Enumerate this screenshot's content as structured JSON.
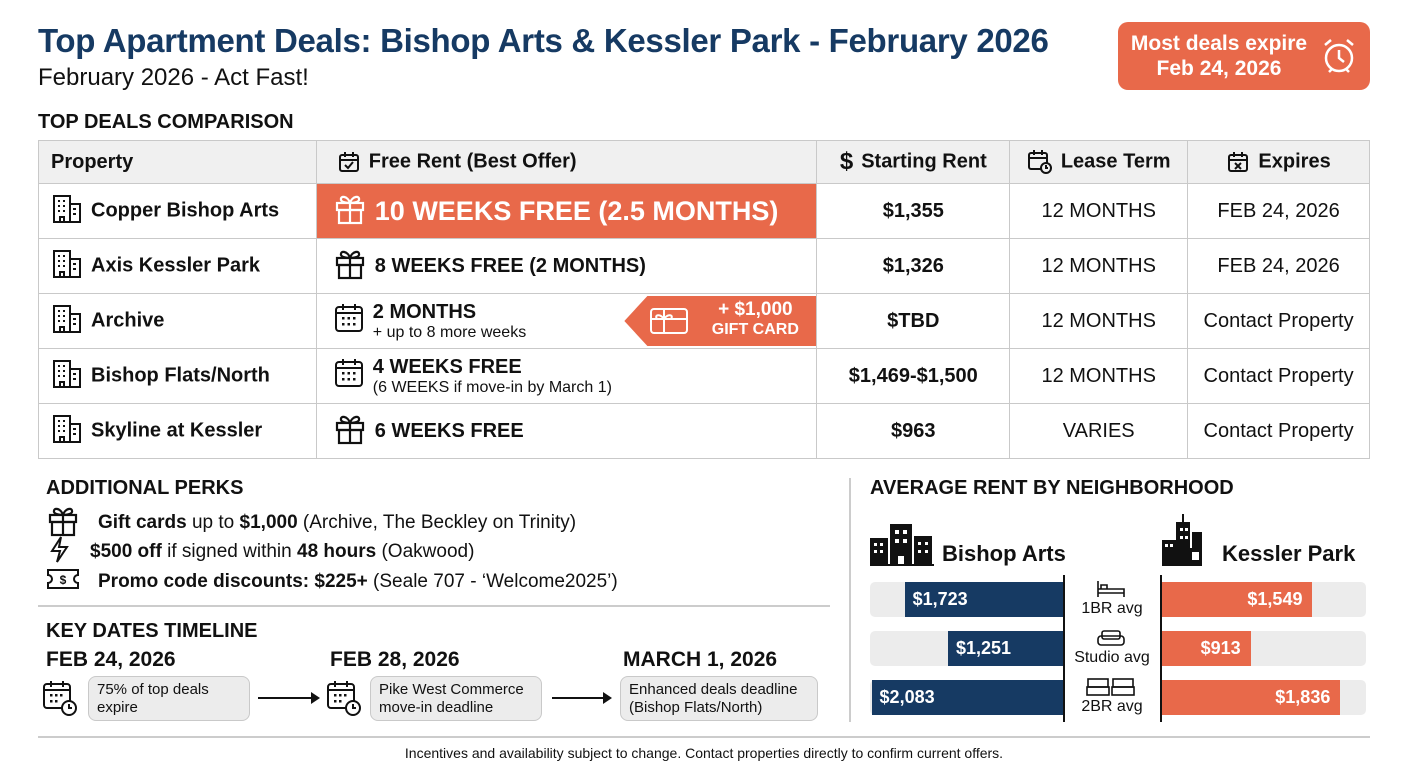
{
  "header": {
    "title": "Top Apartment Deals: Bishop Arts & Kessler Park - February 2026",
    "subtitle": "February 2026 - Act Fast!",
    "badge_line1": "Most deals expire",
    "badge_line2": "Feb 24, 2026",
    "badge_icon": "alarm-clock-icon"
  },
  "colors": {
    "navy": "#163a63",
    "orange": "#e8694a"
  },
  "comparison": {
    "heading": "TOP DEALS COMPARISON",
    "columns": [
      "Property",
      "Free Rent (Best Offer)",
      "Starting Rent",
      "Lease Term",
      "Expires"
    ],
    "rows": [
      {
        "property": "Copper Bishop Arts",
        "offer": "10 WEEKS FREE (2.5 MONTHS)",
        "offer_note": "",
        "offer_icon": "gift-icon",
        "highlight": true,
        "rent": "$1,355",
        "term": "12 MONTHS",
        "expires": "FEB 24, 2026"
      },
      {
        "property": "Axis Kessler Park",
        "offer": "8 WEEKS FREE (2 MONTHS)",
        "offer_note": "",
        "offer_icon": "gift-icon",
        "rent": "$1,326",
        "term": "12 MONTHS",
        "expires": "FEB 24, 2026"
      },
      {
        "property": "Archive",
        "offer": "2 MONTHS",
        "offer_note": "+ up to 8 more weeks",
        "offer_icon": "calendar-icon",
        "tag_line1": "+ $1,000",
        "tag_line2": "GIFT CARD",
        "rent": "$TBD",
        "term": "12 MONTHS",
        "expires": "Contact Property"
      },
      {
        "property": "Bishop Flats/North",
        "offer": "4 WEEKS FREE",
        "offer_note": "(6 WEEKS if move-in by March 1)",
        "offer_icon": "calendar-icon",
        "rent": "$1,469-$1,500",
        "term": "12 MONTHS",
        "expires": "Contact Property"
      },
      {
        "property": "Skyline at Kessler",
        "offer": "6 WEEKS FREE",
        "offer_note": "",
        "offer_icon": "gift-icon",
        "rent": "$963",
        "term": "VARIES",
        "expires": "Contact Property"
      }
    ]
  },
  "perks": {
    "heading": "ADDITIONAL PERKS",
    "items": [
      {
        "icon": "gift-icon",
        "b1": "Gift cards",
        "t1": " up to ",
        "b2": "$1,000",
        "t2": " (Archive, The Beckley on Trinity)"
      },
      {
        "icon": "lightning-icon",
        "b1": "$500 off",
        "t1": " if signed within ",
        "b2": "48 hours",
        "t2": " (Oakwood)"
      },
      {
        "icon": "ticket-icon",
        "b1": "Promo code discounts: $225+",
        "t1": " (Seale 707 - ‘Welcome2025’)",
        "b2": "",
        "t2": ""
      }
    ]
  },
  "timeline": {
    "heading": "KEY DATES TIMELINE",
    "events": [
      {
        "date": "FEB 24, 2026",
        "line1": "75% of top deals",
        "line2": "expire"
      },
      {
        "date": "FEB 28, 2026",
        "line1": "Pike West Commerce",
        "line2": "move-in deadline"
      },
      {
        "date": "MARCH 1, 2026",
        "line1": "Enhanced deals deadline",
        "line2": "(Bishop Flats/North)"
      }
    ]
  },
  "chart_data": {
    "type": "bar",
    "title": "AVERAGE RENT BY NEIGHBORHOOD",
    "categories": [
      "1BR avg",
      "Studio avg",
      "2BR avg"
    ],
    "series": [
      {
        "name": "Bishop Arts",
        "values": [
          1723,
          1251,
          2083
        ],
        "labels": [
          "$1,723",
          "$1,251",
          "$2,083"
        ],
        "color": "#163a63"
      },
      {
        "name": "Kessler Park",
        "values": [
          1549,
          913,
          1836
        ],
        "labels": [
          "$1,549",
          "$913",
          "$1,836"
        ],
        "color": "#e8694a"
      }
    ]
  },
  "footnote": "Incentives and availability subject to change. Contact properties directly to confirm current offers."
}
